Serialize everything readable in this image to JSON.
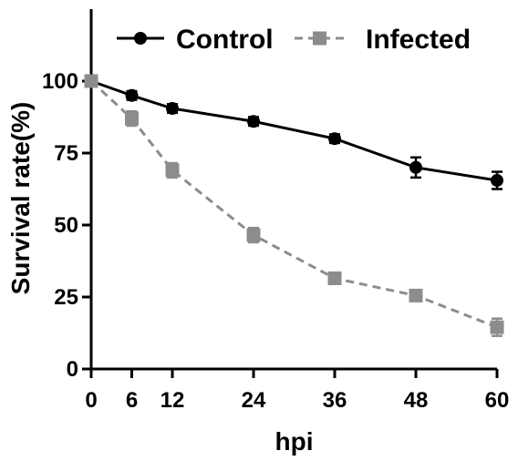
{
  "chart_data": {
    "type": "line",
    "title": "",
    "xlabel": "hpi",
    "ylabel": "Survival rate(%)",
    "x": [
      0,
      6,
      12,
      24,
      36,
      48,
      60
    ],
    "xticks": [
      0,
      6,
      12,
      24,
      36,
      48,
      60
    ],
    "yticks": [
      0,
      25,
      50,
      75,
      100
    ],
    "xlim": [
      0,
      60
    ],
    "ylim": [
      0,
      125
    ],
    "grid": false,
    "legend_position": "top",
    "series": [
      {
        "name": "Control",
        "values": [
          100,
          95,
          90.5,
          86,
          80,
          70,
          65.5
        ],
        "errors": [
          0,
          1.5,
          1.5,
          1.5,
          1.5,
          3.5,
          3
        ],
        "color": "#000000",
        "marker": "circle",
        "line_style": "solid"
      },
      {
        "name": "Infected",
        "values": [
          100,
          87,
          69,
          46.5,
          31.5,
          25.5,
          14.5
        ],
        "errors": [
          0,
          2.5,
          2.5,
          2.5,
          1.5,
          1.5,
          3
        ],
        "color": "#8c8c8c",
        "marker": "square",
        "line_style": "dashed"
      }
    ]
  }
}
